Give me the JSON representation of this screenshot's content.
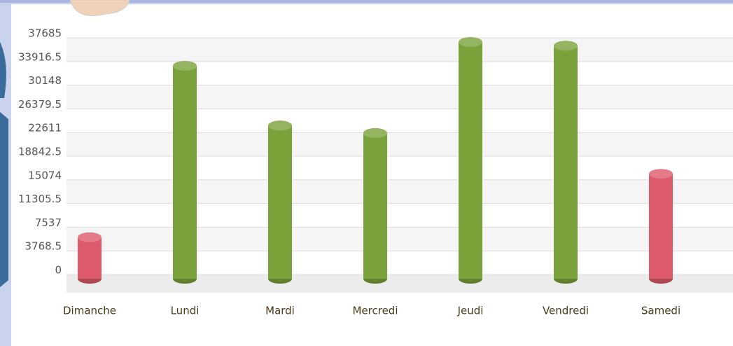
{
  "chart_data": {
    "type": "bar",
    "categories": [
      "Dimanche",
      "Lundi",
      "Mardi",
      "Mercredi",
      "Jeudi",
      "Vendredi",
      "Samedi"
    ],
    "values": [
      6600,
      33900,
      24400,
      23200,
      37685,
      37100,
      16700
    ],
    "colors": [
      "#dc5a6b",
      "#7ba13a",
      "#7ba13a",
      "#7ba13a",
      "#7ba13a",
      "#7ba13a",
      "#dc5a6b"
    ],
    "ylim": [
      0,
      37685
    ],
    "yticks": [
      0,
      3768.5,
      7537,
      11305.5,
      15074,
      18842.5,
      22611,
      26379.5,
      30148,
      33916.5,
      37685
    ],
    "grid": true
  }
}
